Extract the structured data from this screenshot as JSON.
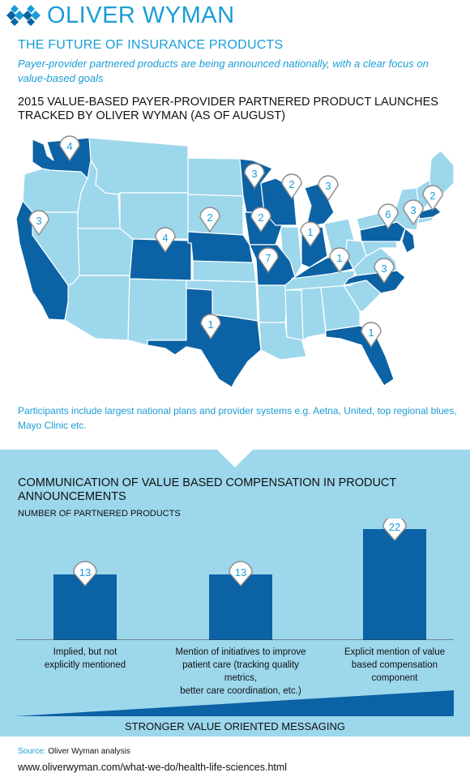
{
  "header": {
    "logo_text": "OLIVER WYMAN",
    "headline": "THE FUTURE OF INSURANCE PRODUCTS",
    "subline": "Payer-provider partnered  products are being announced nationally, with a clear focus on value-based goals"
  },
  "map": {
    "title": "2015 VALUE-BASED PAYER-PROVIDER PARTNERED PRODUCT LAUNCHES TRACKED BY OLIVER WYMAN (AS OF AUGUST)",
    "markers": [
      {
        "state": "Washington",
        "count": "4"
      },
      {
        "state": "California",
        "count": "3"
      },
      {
        "state": "Colorado",
        "count": "4"
      },
      {
        "state": "Nebraska",
        "count": "2"
      },
      {
        "state": "Minnesota",
        "count": "3"
      },
      {
        "state": "Iowa",
        "count": "2"
      },
      {
        "state": "Wisconsin",
        "count": "2"
      },
      {
        "state": "Michigan",
        "count": "3"
      },
      {
        "state": "Missouri",
        "count": "7"
      },
      {
        "state": "Indiana",
        "count": "1"
      },
      {
        "state": "Kentucky",
        "count": "1"
      },
      {
        "state": "Pennsylvania",
        "count": "6"
      },
      {
        "state": "New Jersey",
        "count": "3"
      },
      {
        "state": "Massachusetts",
        "count": "2"
      },
      {
        "state": "North Carolina",
        "count": "3"
      },
      {
        "state": "Texas",
        "count": "1"
      },
      {
        "state": "Florida",
        "count": "1"
      }
    ],
    "footnote": "Participants include largest national plans and provider systems e.g. Aetna, United, top regional blues, Mayo Clinic etc.",
    "colors": {
      "highlight": "#0b62a4",
      "base": "#9dd7ec",
      "border": "#ffffff",
      "pin_text": "#1a9dd6"
    }
  },
  "chart_data": {
    "type": "bar",
    "title": "COMMUNICATION OF VALUE BASED COMPENSATION IN PRODUCT ANNOUNCEMENTS",
    "ylabel": "NUMBER OF PARTNERED PRODUCTS",
    "xlabel": "STRONGER VALUE ORIENTED MESSAGING",
    "categories": [
      "Implied, but not explicitly mentioned",
      "Mention of initiatives to improve patient care (tracking quality metrics, better care coordination, etc.)",
      "Explicit mention of value based compensation component"
    ],
    "category_lines": [
      [
        "Implied, but not",
        "explicitly mentioned"
      ],
      [
        "Mention of initiatives to improve",
        "patient care (tracking quality metrics,",
        "better care coordination, etc.)"
      ],
      [
        "Explicit mention of value",
        "based compensation",
        "component"
      ]
    ],
    "values": [
      13,
      13,
      22
    ],
    "value_labels": [
      "13",
      "13",
      "22"
    ],
    "ylim": [
      0,
      22
    ],
    "grid": false,
    "bar_color": "#0b62a4"
  },
  "footer": {
    "source_key": "Source:",
    "source_value": "Oliver Wyman analysis",
    "url": "www.oliverwyman.com/what-we-do/health-life-sciences.html"
  }
}
